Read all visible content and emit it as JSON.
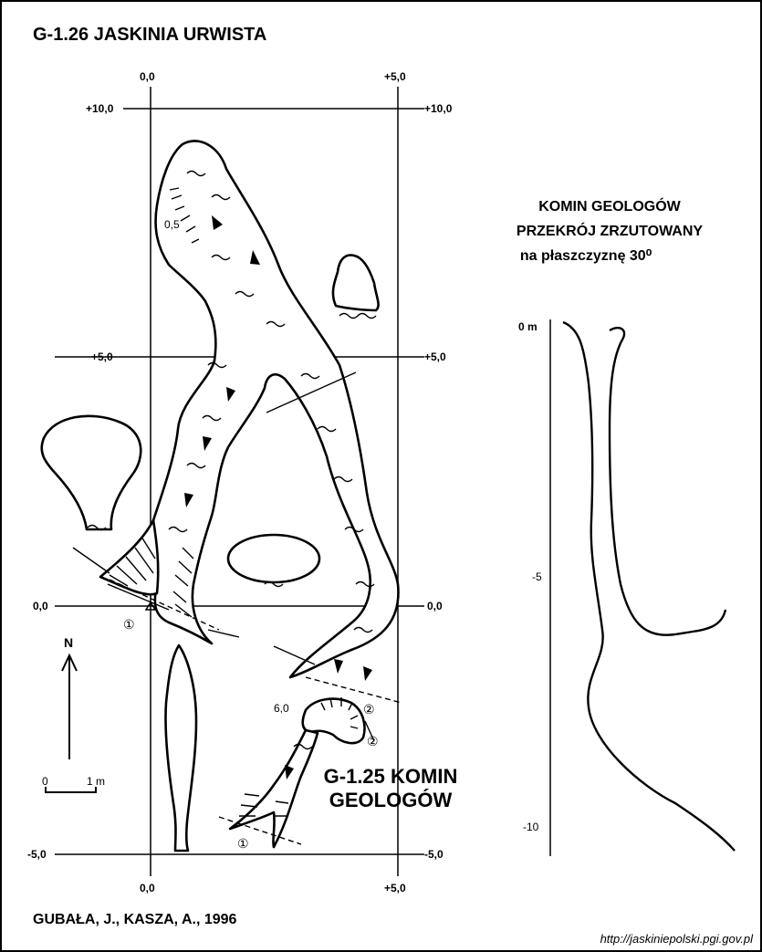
{
  "title": "G-1.26  JASKINIA URWISTA",
  "section": {
    "line1": "KOMIN GEOLOGÓW",
    "line2": "PRZEKRÓJ ZRZUTOWANY",
    "line3": "na płaszczyznę 30⁰",
    "depth_labels": [
      "0 m",
      "-5",
      "-10"
    ]
  },
  "second_cave": {
    "line1": "G-1.25 KOMIN",
    "line2": "GEOLOGÓW"
  },
  "grid": {
    "top_x": [
      "0,0",
      "+5,0"
    ],
    "bottom_x": [
      "0,0",
      "+5,0"
    ],
    "left_y": [
      "+10,0",
      "+5,0",
      "0,0",
      "-5,0"
    ],
    "right_y": [
      "+10,0",
      "+5,0",
      "0,0",
      "-5,0"
    ]
  },
  "north": "N",
  "scale": {
    "zero": "0",
    "one": "1 m"
  },
  "annotations": {
    "height_05": "0,5",
    "height_60": "6,0",
    "mark1": "①",
    "mark2": "②"
  },
  "author": "GUBAŁA, J., KASZA, A., 1996",
  "url": "http://jaskiniepolski.pgi.gov.pl"
}
